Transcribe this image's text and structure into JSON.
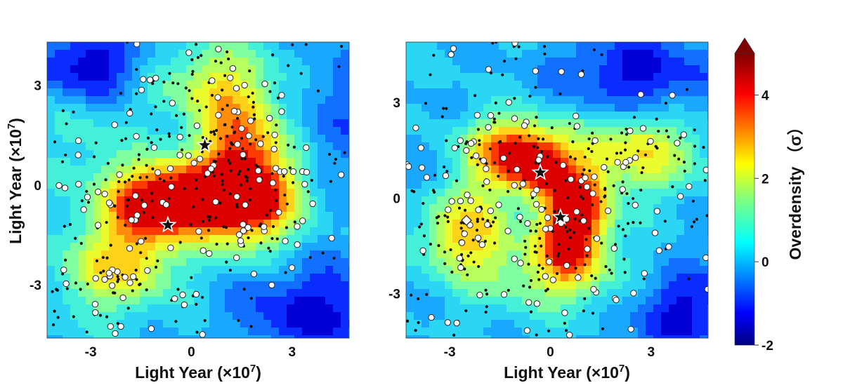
{
  "chart_data": [
    {
      "type": "heatmap",
      "panel": "left",
      "xlabel": "Light Year (×10",
      "xlabel_exp": "7",
      "xlabel_close": ")",
      "ylabel": "Light Year (×10",
      "ylabel_exp": "7",
      "ylabel_close": ")",
      "xlim": [
        -4.3,
        4.7
      ],
      "ylim": [
        -4.6,
        4.3
      ],
      "x_ticks": [
        -3,
        0,
        3
      ],
      "y_ticks": [
        -3,
        0,
        3
      ],
      "x_tick_labels": [
        "-3",
        "0",
        "3"
      ],
      "y_tick_labels": [
        "-3",
        "0",
        "3"
      ],
      "density_blobs": [
        {
          "x": -0.8,
          "y": -0.4,
          "sx": 1.2,
          "sy": 0.8,
          "amp": 3.8
        },
        {
          "x": 1.8,
          "y": -0.3,
          "sx": 0.9,
          "sy": 1.1,
          "amp": 3.9
        },
        {
          "x": 0.4,
          "y": -0.5,
          "sx": 1.5,
          "sy": 0.7,
          "amp": 2.2
        },
        {
          "x": 1.4,
          "y": 1.6,
          "sx": 0.9,
          "sy": 1.3,
          "amp": 2.4
        },
        {
          "x": -1.7,
          "y": -2.2,
          "sx": 1.0,
          "sy": 1.0,
          "amp": 2.3
        },
        {
          "x": 0.3,
          "y": 3.1,
          "sx": 1.3,
          "sy": 0.9,
          "amp": 1.5
        },
        {
          "x": -3.1,
          "y": -2.7,
          "sx": 0.8,
          "sy": 1.0,
          "amp": 1.2
        },
        {
          "x": -3.2,
          "y": 1.5,
          "sx": 0.9,
          "sy": 1.2,
          "amp": 0.7
        },
        {
          "x": -3.0,
          "y": 3.6,
          "sx": 1.2,
          "sy": 0.8,
          "amp": -2.0
        },
        {
          "x": 3.6,
          "y": -3.8,
          "sx": 1.5,
          "sy": 1.0,
          "amp": -1.7
        },
        {
          "x": 4.3,
          "y": 2.2,
          "sx": 0.9,
          "sy": 1.4,
          "amp": -0.8
        }
      ],
      "stars": [
        {
          "x": 0.4,
          "y": 1.2
        },
        {
          "x": -0.7,
          "y": -1.2
        }
      ],
      "diamonds": []
    },
    {
      "type": "heatmap",
      "panel": "right",
      "xlabel": "Light Year (×10",
      "xlabel_exp": "7",
      "xlabel_close": ")",
      "xlim": [
        -4.3,
        4.7
      ],
      "ylim": [
        -4.4,
        4.9
      ],
      "x_ticks": [
        -3,
        0,
        3
      ],
      "y_ticks": [
        -3,
        0,
        3
      ],
      "x_tick_labels": [
        "-3",
        "0",
        "3"
      ],
      "y_tick_labels": [
        "-3",
        "0",
        "3"
      ],
      "density_blobs": [
        {
          "x": -1.1,
          "y": 1.4,
          "sx": 1.0,
          "sy": 0.8,
          "amp": 4.0
        },
        {
          "x": -0.2,
          "y": 0.9,
          "sx": 0.6,
          "sy": 0.6,
          "amp": 2.5
        },
        {
          "x": 0.8,
          "y": -0.3,
          "sx": 0.7,
          "sy": 0.9,
          "amp": 3.8
        },
        {
          "x": 0.5,
          "y": -1.7,
          "sx": 0.7,
          "sy": 0.9,
          "amp": 3.2
        },
        {
          "x": 2.6,
          "y": 1.5,
          "sx": 1.3,
          "sy": 0.9,
          "amp": 2.5
        },
        {
          "x": -2.6,
          "y": -1.1,
          "sx": 0.9,
          "sy": 1.0,
          "amp": 2.8
        },
        {
          "x": -1.0,
          "y": -2.4,
          "sx": 0.9,
          "sy": 0.9,
          "amp": 1.1
        },
        {
          "x": 2.0,
          "y": -2.6,
          "sx": 1.2,
          "sy": 0.9,
          "amp": 0.8
        },
        {
          "x": 2.6,
          "y": 3.8,
          "sx": 1.6,
          "sy": 1.0,
          "amp": -1.7
        },
        {
          "x": 3.8,
          "y": -3.5,
          "sx": 1.2,
          "sy": 1.0,
          "amp": -1.8
        },
        {
          "x": -4.0,
          "y": 0.8,
          "sx": 0.5,
          "sy": 1.2,
          "amp": -0.6
        }
      ],
      "stars": [
        {
          "x": -0.3,
          "y": 0.8
        },
        {
          "x": 0.3,
          "y": -0.6
        }
      ],
      "diamonds": [
        {
          "x": -2.5,
          "y": -0.7
        }
      ]
    }
  ],
  "colorbar": {
    "title": "Overdensity （σ）",
    "min": -2,
    "max": 5,
    "tick_values": [
      -2,
      0,
      2,
      4
    ],
    "tick_labels": [
      "-2",
      "0",
      "2",
      "4"
    ],
    "extend": "max",
    "colormap": "jet"
  },
  "markers": {
    "dot_color": "#111111",
    "open_circle_fill": "#ffffff",
    "open_circle_edge": "#222222",
    "star_fill": "#111111",
    "star_edge": "#ffffff"
  }
}
